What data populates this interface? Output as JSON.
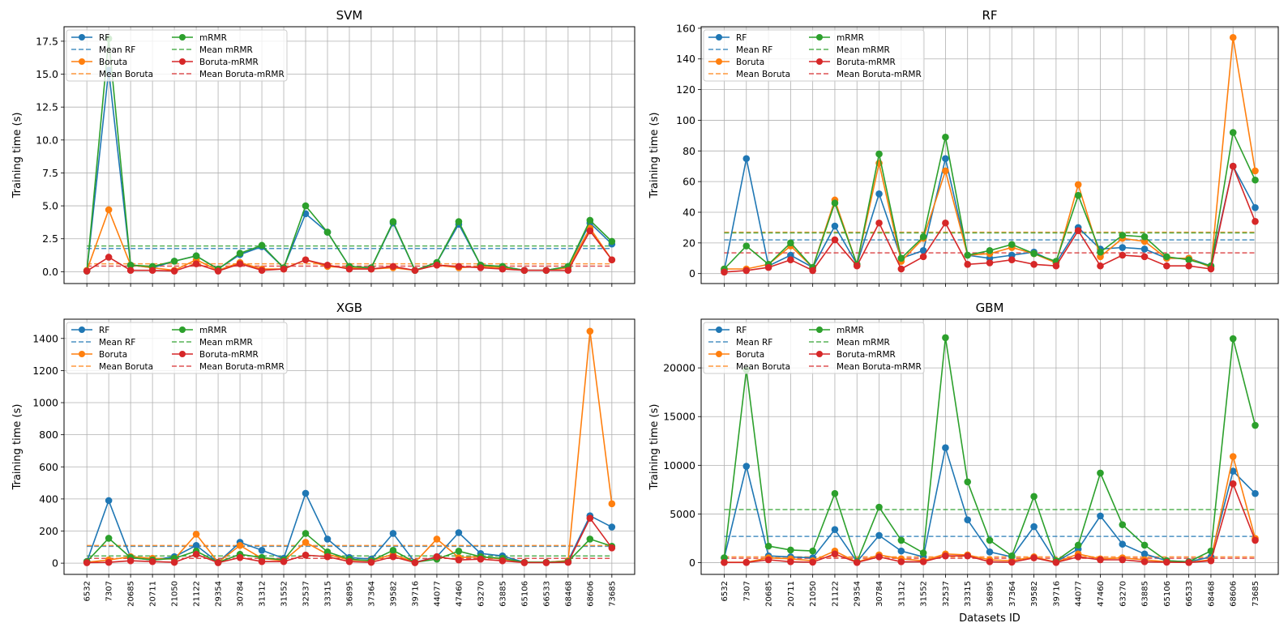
{
  "chart_data": [
    {
      "type": "line",
      "title": "SVM",
      "xlabel": "",
      "ylabel": "Training time (s)",
      "categories": [
        "6532",
        "7307",
        "20685",
        "20711",
        "21050",
        "21122",
        "29354",
        "30784",
        "31312",
        "31552",
        "32537",
        "33315",
        "36895",
        "37364",
        "39582",
        "39716",
        "44077",
        "47460",
        "63270",
        "63885",
        "65106",
        "66533",
        "68468",
        "68606",
        "73685"
      ],
      "ylim": [
        -0.9,
        18.6
      ],
      "yticks": [
        0.0,
        2.5,
        5.0,
        7.5,
        10.0,
        12.5,
        15.0,
        17.5
      ],
      "ytick_labels": [
        "0.0",
        "2.5",
        "5.0",
        "7.5",
        "10.0",
        "12.5",
        "15.0",
        "17.5"
      ],
      "show_xtick_labels": false,
      "grid": true,
      "legend_position": "top-left",
      "series": [
        {
          "name": "RF",
          "color": "#1f77b4",
          "values": [
            0.05,
            15.3,
            0.5,
            0.3,
            0.8,
            1.2,
            0.2,
            1.3,
            1.9,
            0.3,
            4.4,
            3.0,
            0.4,
            0.3,
            3.7,
            0.1,
            0.7,
            3.6,
            0.5,
            0.4,
            0.1,
            0.1,
            0.4,
            3.7,
            2.1
          ],
          "mean": 1.76
        },
        {
          "name": "Boruta",
          "color": "#ff7f0e",
          "values": [
            0.1,
            4.7,
            0.5,
            0.3,
            0.1,
            0.9,
            0.1,
            0.7,
            0.2,
            0.2,
            0.9,
            0.4,
            0.3,
            0.2,
            0.3,
            0.1,
            0.5,
            0.3,
            0.4,
            0.3,
            0.1,
            0.1,
            0.3,
            3.3,
            0.9
          ],
          "mean": 0.6
        },
        {
          "name": "mRMR",
          "color": "#2ca02c",
          "values": [
            0.05,
            17.7,
            0.5,
            0.4,
            0.8,
            1.2,
            0.2,
            1.4,
            2.0,
            0.3,
            5.0,
            3.0,
            0.4,
            0.3,
            3.8,
            0.1,
            0.7,
            3.8,
            0.5,
            0.4,
            0.1,
            0.1,
            0.4,
            3.9,
            2.3
          ],
          "mean": 1.95
        },
        {
          "name": "Boruta-mRMR",
          "color": "#d62728",
          "values": [
            0.05,
            1.1,
            0.1,
            0.1,
            0.05,
            0.6,
            0.05,
            0.6,
            0.1,
            0.2,
            0.9,
            0.5,
            0.2,
            0.2,
            0.4,
            0.1,
            0.5,
            0.4,
            0.3,
            0.2,
            0.1,
            0.1,
            0.1,
            3.1,
            0.9
          ],
          "mean": 0.42
        }
      ]
    },
    {
      "type": "line",
      "title": "RF",
      "xlabel": "",
      "ylabel": "Training time (s)",
      "categories": [
        "6532",
        "7307",
        "20685",
        "20711",
        "21050",
        "21122",
        "29354",
        "30784",
        "31312",
        "31552",
        "32537",
        "33315",
        "36895",
        "37364",
        "39582",
        "39716",
        "44077",
        "47460",
        "63270",
        "63885",
        "65106",
        "66533",
        "68468",
        "68606",
        "73685"
      ],
      "ylim": [
        -6.5,
        161
      ],
      "yticks": [
        0,
        20,
        40,
        60,
        80,
        100,
        120,
        140,
        160
      ],
      "ytick_labels": [
        "0",
        "20",
        "40",
        "60",
        "80",
        "100",
        "120",
        "140",
        "160"
      ],
      "show_xtick_labels": false,
      "grid": true,
      "legend_position": "top-left",
      "series": [
        {
          "name": "RF",
          "color": "#1f77b4",
          "values": [
            2,
            75,
            5,
            12,
            4,
            31,
            6,
            52,
            10,
            15,
            75,
            12,
            10,
            12,
            14,
            7,
            30,
            16,
            17,
            16,
            10,
            10,
            5,
            70,
            43
          ],
          "mean": 22
        },
        {
          "name": "Boruta",
          "color": "#ff7f0e",
          "values": [
            3,
            3,
            6,
            18,
            4,
            48,
            6,
            72,
            8,
            23,
            67,
            12,
            13,
            17,
            13,
            7,
            58,
            11,
            23,
            21,
            10,
            10,
            4,
            154,
            67
          ],
          "mean": 27
        },
        {
          "name": "mRMR",
          "color": "#2ca02c",
          "values": [
            3,
            18,
            6,
            20,
            4,
            46,
            6,
            78,
            10,
            24,
            89,
            12,
            15,
            19,
            13,
            8,
            51,
            14,
            25,
            24,
            11,
            9,
            5,
            92,
            61
          ],
          "mean": 26.5
        },
        {
          "name": "Boruta-mRMR",
          "color": "#d62728",
          "values": [
            1,
            2,
            4,
            9,
            2,
            22,
            5,
            33,
            3,
            11,
            33,
            6,
            7,
            9,
            6,
            5,
            28,
            5,
            12,
            11,
            5,
            5,
            3,
            70,
            34
          ],
          "mean": 13.5
        }
      ]
    },
    {
      "type": "line",
      "title": "XGB",
      "xlabel": "",
      "ylabel": "Training time (s)",
      "categories": [
        "6532",
        "7307",
        "20685",
        "20711",
        "21050",
        "21122",
        "29354",
        "30784",
        "31312",
        "31552",
        "32537",
        "33315",
        "36895",
        "37364",
        "39582",
        "39716",
        "44077",
        "47460",
        "63270",
        "63885",
        "65106",
        "66533",
        "68468",
        "68606",
        "73685"
      ],
      "ylim": [
        -70,
        1520
      ],
      "yticks": [
        0,
        200,
        400,
        600,
        800,
        1000,
        1200,
        1400
      ],
      "ytick_labels": [
        "0",
        "200",
        "400",
        "600",
        "800",
        "1000",
        "1200",
        "1400"
      ],
      "show_xtick_labels": true,
      "grid": true,
      "legend_position": "top-left",
      "series": [
        {
          "name": "RF",
          "color": "#1f77b4",
          "values": [
            10,
            390,
            35,
            20,
            40,
            110,
            5,
            130,
            80,
            30,
            435,
            150,
            35,
            25,
            185,
            5,
            40,
            190,
            60,
            45,
            5,
            5,
            15,
            295,
            225
          ],
          "mean": 105
        },
        {
          "name": "Boruta",
          "color": "#ff7f0e",
          "values": [
            5,
            20,
            40,
            30,
            25,
            180,
            5,
            110,
            30,
            15,
            130,
            55,
            20,
            15,
            55,
            5,
            150,
            35,
            40,
            25,
            5,
            5,
            15,
            1445,
            370
          ],
          "mean": 110
        },
        {
          "name": "mRMR",
          "color": "#2ca02c",
          "values": [
            10,
            155,
            35,
            20,
            30,
            75,
            5,
            55,
            35,
            20,
            185,
            70,
            25,
            15,
            80,
            5,
            25,
            75,
            40,
            30,
            5,
            5,
            10,
            150,
            105
          ],
          "mean": 45
        },
        {
          "name": "Boruta-mRMR",
          "color": "#d62728",
          "values": [
            3,
            5,
            15,
            10,
            5,
            55,
            3,
            35,
            10,
            10,
            50,
            40,
            10,
            5,
            40,
            3,
            40,
            20,
            25,
            15,
            3,
            3,
            5,
            280,
            95
          ],
          "mean": 30
        }
      ]
    },
    {
      "type": "line",
      "title": "GBM",
      "xlabel": "Datasets ID",
      "ylabel": "Training time (s)",
      "categories": [
        "6532",
        "7307",
        "20685",
        "20711",
        "21050",
        "21122",
        "29354",
        "30784",
        "31312",
        "31552",
        "32537",
        "33315",
        "36895",
        "37364",
        "39582",
        "39716",
        "44077",
        "47460",
        "63270",
        "63885",
        "65106",
        "66533",
        "68468",
        "68606",
        "73685"
      ],
      "ylim": [
        -1200,
        25000
      ],
      "yticks": [
        0,
        5000,
        10000,
        15000,
        20000
      ],
      "ytick_labels": [
        "0",
        "5000",
        "10000",
        "15000",
        "20000"
      ],
      "show_xtick_labels": true,
      "grid": true,
      "legend_position": "top-left",
      "series": [
        {
          "name": "RF",
          "color": "#1f77b4",
          "values": [
            500,
            9900,
            700,
            600,
            500,
            3400,
            100,
            2800,
            1200,
            600,
            11800,
            4400,
            1100,
            600,
            3700,
            100,
            1400,
            4800,
            1900,
            900,
            200,
            100,
            600,
            9400,
            7100
          ],
          "mean": 2700
        },
        {
          "name": "Boruta",
          "color": "#ff7f0e",
          "values": [
            50,
            50,
            500,
            400,
            200,
            1200,
            50,
            800,
            400,
            200,
            900,
            800,
            300,
            200,
            600,
            50,
            900,
            400,
            500,
            300,
            100,
            50,
            300,
            10900,
            2500
          ],
          "mean": 600
        },
        {
          "name": "mRMR",
          "color": "#2ca02c",
          "values": [
            500,
            19800,
            1700,
            1300,
            1200,
            7100,
            100,
            5700,
            2300,
            1000,
            23100,
            8300,
            2300,
            700,
            6800,
            200,
            1800,
            9200,
            3900,
            1800,
            200,
            100,
            1200,
            23000,
            14100
          ],
          "mean": 5450
        },
        {
          "name": "Boruta-mRMR",
          "color": "#d62728",
          "values": [
            20,
            20,
            300,
            100,
            50,
            900,
            20,
            600,
            100,
            100,
            700,
            700,
            100,
            50,
            500,
            20,
            600,
            300,
            300,
            100,
            50,
            20,
            200,
            8100,
            2300
          ],
          "mean": 450
        }
      ]
    }
  ],
  "legend": {
    "items": [
      {
        "label": "RF",
        "kind": "line",
        "color": "#1f77b4"
      },
      {
        "label": "Mean RF",
        "kind": "dash",
        "color": "#1f77b4"
      },
      {
        "label": "Boruta",
        "kind": "line",
        "color": "#ff7f0e"
      },
      {
        "label": "Mean Boruta",
        "kind": "dash",
        "color": "#ff7f0e"
      },
      {
        "label": "mRMR",
        "kind": "line",
        "color": "#2ca02c"
      },
      {
        "label": "Mean mRMR",
        "kind": "dash",
        "color": "#2ca02c"
      },
      {
        "label": "Boruta-mRMR",
        "kind": "line",
        "color": "#d62728"
      },
      {
        "label": "Mean Boruta-mRMR",
        "kind": "dash",
        "color": "#d62728"
      }
    ]
  }
}
